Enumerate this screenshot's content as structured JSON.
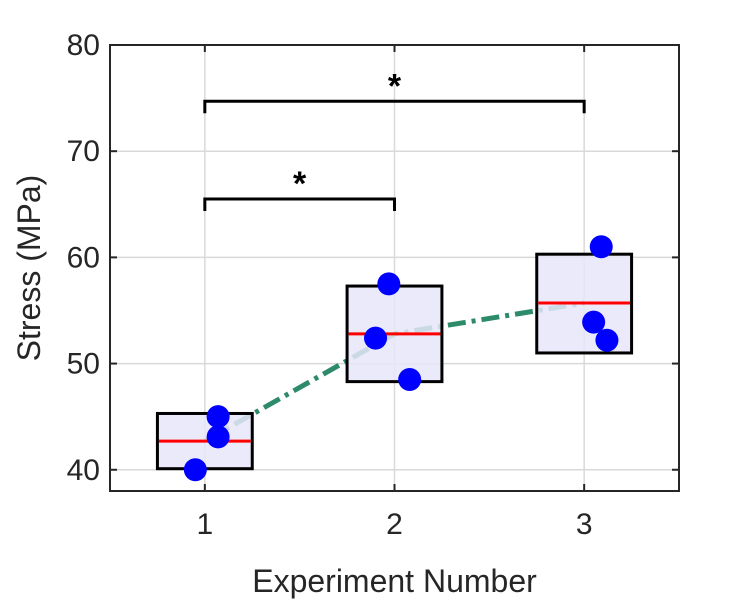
{
  "chart_data": {
    "type": "box",
    "xlabel": "Experiment Number",
    "ylabel": "Stress (MPa)",
    "xlim": [
      0.5,
      3.5
    ],
    "ylim": [
      38,
      80
    ],
    "x_ticks": [
      1,
      2,
      3
    ],
    "y_ticks": [
      40,
      50,
      60,
      70,
      80
    ],
    "grid": true,
    "colors": {
      "box_fill": "#e6e6fa",
      "box_edge": "#000000",
      "median": "#ff0000",
      "points": "#0000ff",
      "trend": "#2e8b6a",
      "grid": "#d9d9d9",
      "axis": "#262626"
    },
    "boxes": [
      {
        "x": 1,
        "low": 40.1,
        "high": 45.3,
        "median": 42.7
      },
      {
        "x": 2,
        "low": 48.3,
        "high": 57.3,
        "median": 52.8
      },
      {
        "x": 3,
        "low": 51.0,
        "high": 60.3,
        "median": 55.7
      }
    ],
    "points": [
      {
        "x": 0.95,
        "y": 40.0
      },
      {
        "x": 1.07,
        "y": 43.1
      },
      {
        "x": 1.07,
        "y": 45.0
      },
      {
        "x": 1.9,
        "y": 52.4
      },
      {
        "x": 1.97,
        "y": 57.5
      },
      {
        "x": 2.08,
        "y": 48.5
      },
      {
        "x": 3.05,
        "y": 53.9
      },
      {
        "x": 3.09,
        "y": 61.0
      },
      {
        "x": 3.12,
        "y": 52.2
      }
    ],
    "trend_line": {
      "x": [
        1,
        2,
        3
      ],
      "y": [
        42.7,
        52.8,
        55.7
      ]
    },
    "significance": [
      {
        "from": 1,
        "to": 2,
        "y": 65.5,
        "label": "*"
      },
      {
        "from": 1,
        "to": 3,
        "y": 74.7,
        "label": "*"
      }
    ]
  }
}
